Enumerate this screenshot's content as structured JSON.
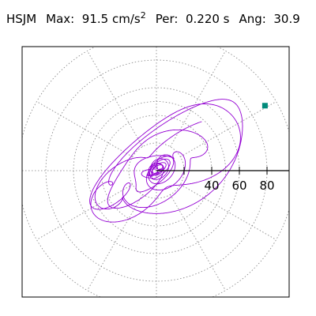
{
  "header": {
    "station": "HSJM",
    "max_label": "Max:",
    "max_value": "91.5",
    "max_unit": "cm/s",
    "max_unit_exp": "2",
    "per_label": "Per:",
    "per_value": "0.220 s",
    "ang_label": "Ang:",
    "ang_value": "30.9"
  },
  "colors": {
    "trace": "#9400d3",
    "marker": "#008b7b",
    "grid": "#808080",
    "axis": "#000000",
    "frame": "#000000"
  },
  "chart_data": {
    "type": "scatter",
    "description_kind": "polar particle-motion hodogram",
    "grid": true,
    "radial_ticks": [
      20,
      40,
      60,
      80
    ],
    "radial_tick_labels": [
      "40",
      "60",
      "80"
    ],
    "radial_range": [
      0,
      100
    ],
    "angular_grid_step_deg": 30,
    "max_amplitude": 91.5,
    "max_angle_deg": 30.9,
    "marker_point": {
      "r": 91.5,
      "angle_deg": 30.9
    },
    "ellipse_components": [
      {
        "a": 95,
        "b": 38,
        "rot_deg": 30.9,
        "w": 1.0,
        "phase": 0.3,
        "decay": 0.55
      },
      {
        "a": 60,
        "b": 30,
        "rot_deg": 45,
        "w": 1.9,
        "phase": 1.1,
        "decay": 0.5
      },
      {
        "a": 45,
        "b": 22,
        "rot_deg": 65,
        "w": 2.7,
        "phase": 2.2,
        "decay": 0.6
      },
      {
        "a": 30,
        "b": 18,
        "rot_deg": 15,
        "w": 3.6,
        "phase": 0.7,
        "decay": 0.7
      }
    ]
  }
}
